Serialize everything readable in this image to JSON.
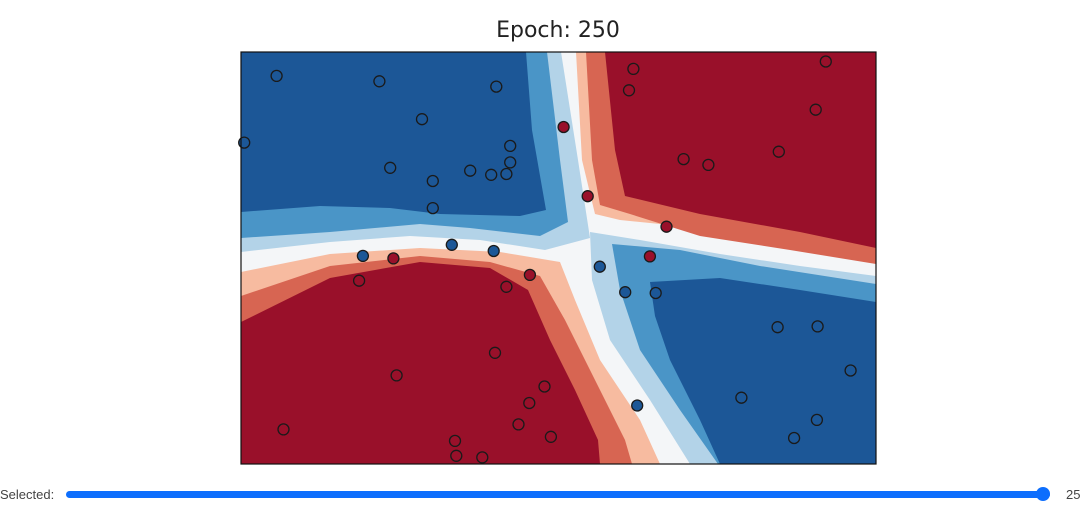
{
  "title": "Epoch: 250",
  "slider": {
    "label": "Selected:",
    "value": "25",
    "fraction": 1.0
  },
  "colors": {
    "red_class": "#99102a",
    "blue_class": "#1c5797",
    "contours": [
      "#1c5797",
      "#4a95c7",
      "#b3d3e8",
      "#f4f6f8",
      "#f7bba0",
      "#d76552",
      "#99102a"
    ]
  },
  "chart_data": {
    "type": "scatter",
    "title": "Epoch: 250",
    "xlim": [
      0,
      1
    ],
    "ylim": [
      0,
      1
    ],
    "grid": false,
    "series": [
      {
        "class": "red",
        "points": [
          [
            0.618,
            0.959
          ],
          [
            0.611,
            0.907
          ],
          [
            0.921,
            0.977
          ],
          [
            0.905,
            0.86
          ],
          [
            0.508,
            0.818
          ],
          [
            0.697,
            0.74
          ],
          [
            0.736,
            0.726
          ],
          [
            0.847,
            0.758
          ],
          [
            0.546,
            0.65
          ],
          [
            0.67,
            0.576
          ],
          [
            0.644,
            0.504
          ],
          [
            0.24,
            0.499
          ],
          [
            0.186,
            0.445
          ],
          [
            0.455,
            0.459
          ],
          [
            0.418,
            0.43
          ],
          [
            0.4,
            0.27
          ],
          [
            0.245,
            0.215
          ],
          [
            0.478,
            0.188
          ],
          [
            0.454,
            0.148
          ],
          [
            0.437,
            0.096
          ],
          [
            0.488,
            0.066
          ],
          [
            0.067,
            0.084
          ],
          [
            0.337,
            0.056
          ],
          [
            0.339,
            0.02
          ],
          [
            0.38,
            0.016
          ]
        ]
      },
      {
        "class": "blue",
        "points": [
          [
            0.056,
            0.942
          ],
          [
            0.218,
            0.929
          ],
          [
            0.402,
            0.916
          ],
          [
            0.285,
            0.837
          ],
          [
            0.005,
            0.78
          ],
          [
            0.424,
            0.772
          ],
          [
            0.424,
            0.732
          ],
          [
            0.235,
            0.719
          ],
          [
            0.394,
            0.702
          ],
          [
            0.361,
            0.712
          ],
          [
            0.418,
            0.704
          ],
          [
            0.302,
            0.687
          ],
          [
            0.302,
            0.621
          ],
          [
            0.192,
            0.505
          ],
          [
            0.332,
            0.532
          ],
          [
            0.398,
            0.517
          ],
          [
            0.565,
            0.479
          ],
          [
            0.605,
            0.417
          ],
          [
            0.653,
            0.415
          ],
          [
            0.845,
            0.332
          ],
          [
            0.908,
            0.334
          ],
          [
            0.96,
            0.227
          ],
          [
            0.788,
            0.161
          ],
          [
            0.624,
            0.142
          ],
          [
            0.907,
            0.107
          ],
          [
            0.871,
            0.063
          ]
        ]
      }
    ]
  }
}
